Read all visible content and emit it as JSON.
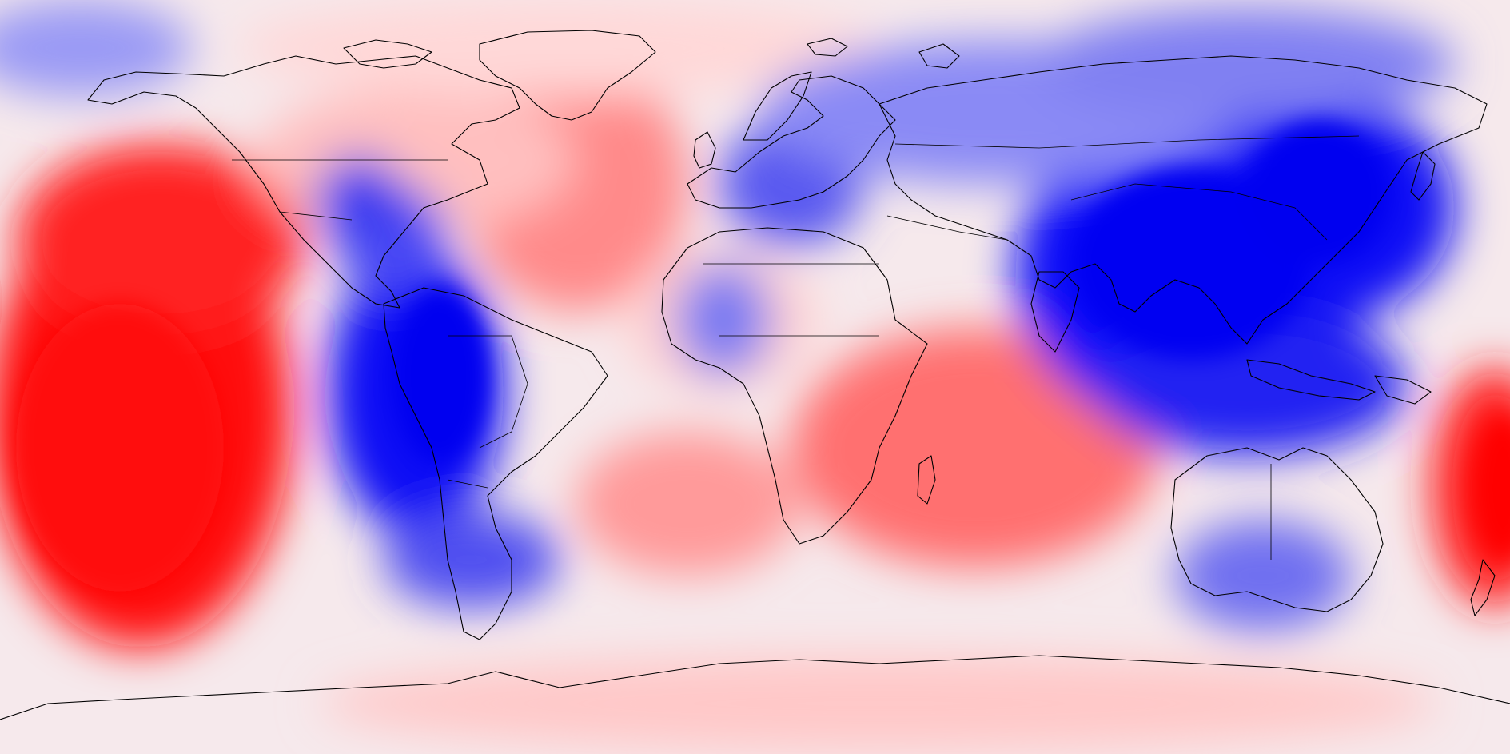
{
  "map": {
    "projection": "equirectangular",
    "extent": {
      "lon": [
        -180,
        180
      ],
      "lat": [
        -90,
        90
      ]
    },
    "field": "anomaly",
    "colormap": {
      "low": "#0000ff",
      "neutral": "#ffffff",
      "high": "#ff0000"
    },
    "levels": 11,
    "anomalies": [
      {
        "region": "central-pacific",
        "sign": "positive",
        "strength": "strong"
      },
      {
        "region": "southwest-pacific",
        "sign": "positive",
        "strength": "strong"
      },
      {
        "region": "eastern-pacific-south-america",
        "sign": "negative",
        "strength": "strong"
      },
      {
        "region": "maritime-continent-east-asia",
        "sign": "negative",
        "strength": "strong"
      },
      {
        "region": "southern-indian-ocean",
        "sign": "positive",
        "strength": "moderate"
      },
      {
        "region": "north-atlantic",
        "sign": "positive",
        "strength": "moderate"
      },
      {
        "region": "europe-eurasia",
        "sign": "negative",
        "strength": "moderate"
      },
      {
        "region": "australia",
        "sign": "negative",
        "strength": "moderate"
      },
      {
        "region": "antarctica",
        "sign": "positive",
        "strength": "weak"
      },
      {
        "region": "arctic-canada-greenland",
        "sign": "positive",
        "strength": "weak"
      }
    ]
  }
}
